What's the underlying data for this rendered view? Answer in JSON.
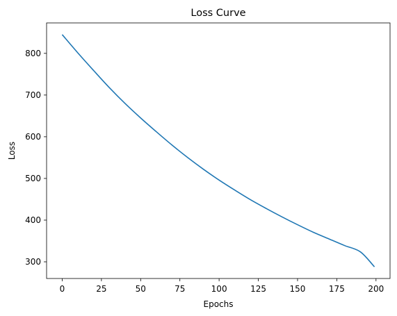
{
  "chart_data": {
    "type": "line",
    "title": "Loss Curve",
    "xlabel": "Epochs",
    "ylabel": "Loss",
    "xlim": [
      -9.95,
      208.95
    ],
    "ylim": [
      260,
      873
    ],
    "xticks": [
      0,
      25,
      50,
      75,
      100,
      125,
      150,
      175,
      200
    ],
    "yticks": [
      300,
      400,
      500,
      600,
      700,
      800
    ],
    "grid": false,
    "line_color": "#1f77b4",
    "series": [
      {
        "x": [
          0,
          10,
          20,
          30,
          40,
          50,
          60,
          70,
          80,
          90,
          100,
          110,
          120,
          130,
          140,
          150,
          160,
          170,
          180,
          190,
          199
        ],
        "values": [
          845,
          801,
          759,
          718,
          680,
          645,
          612,
          580,
          550,
          522,
          496,
          472,
          449,
          428,
          408,
          389,
          371,
          355,
          339,
          324,
          288
        ]
      }
    ]
  }
}
